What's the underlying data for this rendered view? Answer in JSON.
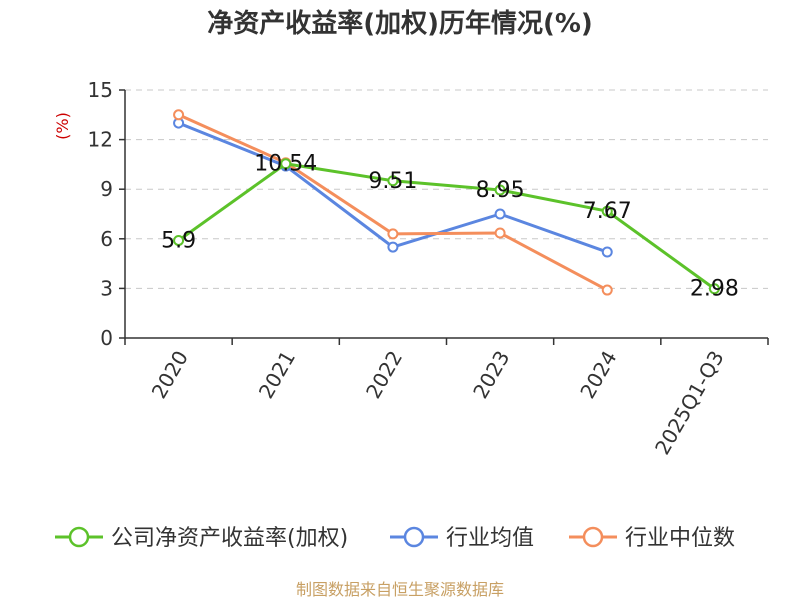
{
  "chart_data": {
    "type": "line",
    "title": "净资产收益率(加权)历年情况(%)",
    "ylabel": "(%)",
    "xlabel": "",
    "categories": [
      "2020",
      "2021",
      "2022",
      "2023",
      "2024",
      "2025Q1-Q3"
    ],
    "ylim": [
      0,
      15
    ],
    "yticks": [
      0,
      3,
      6,
      9,
      12,
      15
    ],
    "grid": true,
    "legend_position": "bottom",
    "series": [
      {
        "name": "公司净资产收益率(加权)",
        "color": "#5cc22a",
        "values": [
          5.9,
          10.54,
          9.51,
          8.95,
          7.67,
          2.98
        ],
        "labels": [
          "5.9",
          "10.54",
          "9.51",
          "8.95",
          "7.67",
          "2.98"
        ]
      },
      {
        "name": "行业均值",
        "color": "#5b86e0",
        "values": [
          13.0,
          10.4,
          5.5,
          7.5,
          5.2,
          null
        ]
      },
      {
        "name": "行业中位数",
        "color": "#f48e5c",
        "values": [
          13.5,
          10.6,
          6.3,
          6.35,
          2.9,
          null
        ]
      }
    ],
    "source": "制图数据来自恒生聚源数据库"
  }
}
